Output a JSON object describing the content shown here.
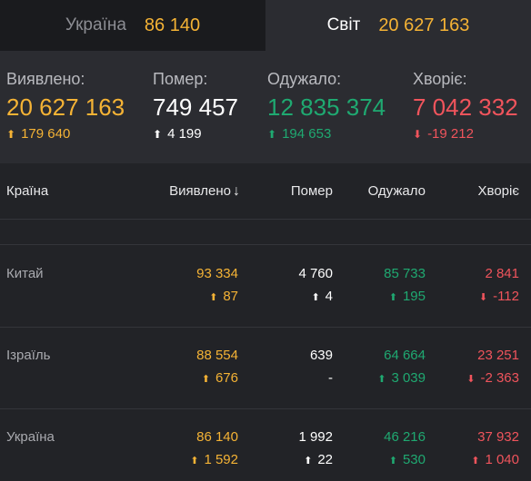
{
  "tabs": [
    {
      "label": "Україна",
      "count": "86 140"
    },
    {
      "label": "Світ",
      "count": "20 627 163"
    }
  ],
  "summary": {
    "confirmed": {
      "label": "Виявлено:",
      "value": "20 627 163",
      "delta": "179 640"
    },
    "deaths": {
      "label": "Помер:",
      "value": "749 457",
      "delta": "4 199"
    },
    "recovered": {
      "label": "Одужало:",
      "value": "12 835 374",
      "delta": "194 653"
    },
    "sick": {
      "label": "Хворіє:",
      "value": "7 042 332",
      "delta": "-19 212"
    }
  },
  "table": {
    "headers": {
      "country": "Країна",
      "confirmed": "Виявлено",
      "deaths": "Помер",
      "recovered": "Одужало",
      "sick": "Хворіє"
    },
    "rows": [
      {
        "country": "Китай",
        "confirmed": "93 334",
        "confirmed_delta": "87",
        "deaths": "4 760",
        "deaths_delta": "4",
        "recovered": "85 733",
        "recovered_delta": "195",
        "sick": "2 841",
        "sick_delta": "-112"
      },
      {
        "country": "Ізраїль",
        "confirmed": "88 554",
        "confirmed_delta": "676",
        "deaths": "639",
        "deaths_delta": "-",
        "recovered": "64 664",
        "recovered_delta": "3 039",
        "sick": "23 251",
        "sick_delta": "-2 363"
      },
      {
        "country": "Україна",
        "confirmed": "86 140",
        "confirmed_delta": "1 592",
        "deaths": "1 992",
        "deaths_delta": "22",
        "recovered": "46 216",
        "recovered_delta": "530",
        "sick": "37 932",
        "sick_delta": "1 040"
      }
    ]
  },
  "colors": {
    "confirmed": "#f5b335",
    "deaths": "#ffffff",
    "recovered": "#1fa971",
    "sick": "#f0545c",
    "background": "#222327"
  },
  "icons": {
    "up": "arrow-up-icon",
    "down": "arrow-down-icon",
    "sort": "sort-down-icon"
  }
}
